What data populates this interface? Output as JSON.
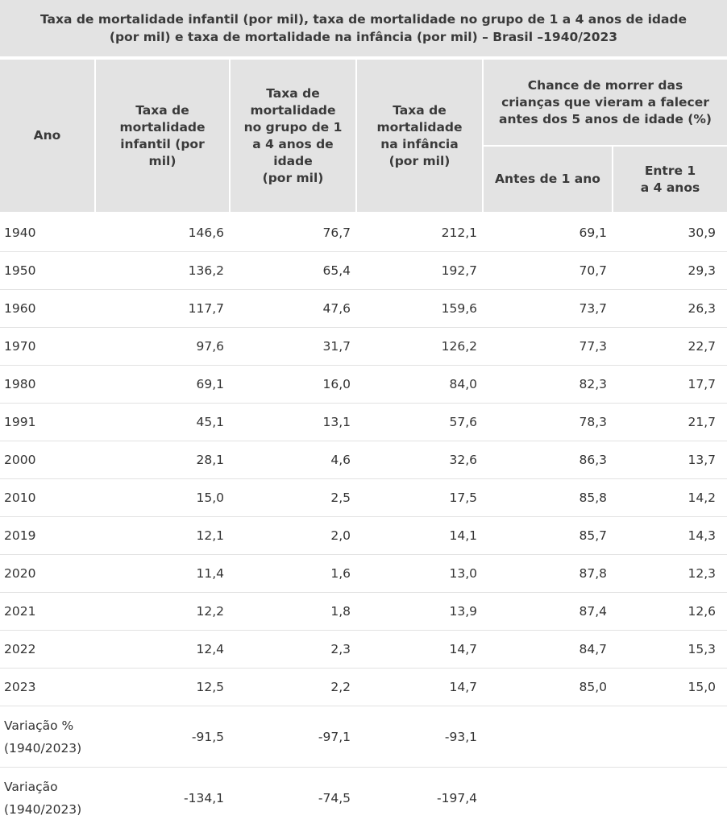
{
  "title": {
    "line1": "Taxa de mortalidade infantil (por mil), taxa de mortalidade no grupo de 1 a 4 anos de idade",
    "line2": "(por mil) e taxa de mortalidade na infância (por mil) – Brasil –1940/2023"
  },
  "header": {
    "ano": "Ano",
    "infantil": "Taxa de\nmortalidade\ninfantil (por\nmil)",
    "grupo": "Taxa de\nmortalidade\nno grupo de 1\na 4 anos de\nidade\n(por mil)",
    "infancia": "Taxa de\nmortalidade\nna infância\n(por mil)",
    "chance": "Chance de morrer das\ncrianças que vieram a falecer\nantes dos 5 anos de idade (%)",
    "antes": "Antes de 1 ano",
    "entre": "Entre 1\na 4 anos"
  },
  "rows": [
    {
      "ano": "1940",
      "infantil": "146,6",
      "grupo": "76,7",
      "infancia": "212,1",
      "antes": "69,1",
      "entre": "30,9"
    },
    {
      "ano": "1950",
      "infantil": "136,2",
      "grupo": "65,4",
      "infancia": "192,7",
      "antes": "70,7",
      "entre": "29,3"
    },
    {
      "ano": "1960",
      "infantil": "117,7",
      "grupo": "47,6",
      "infancia": "159,6",
      "antes": "73,7",
      "entre": "26,3"
    },
    {
      "ano": "1970",
      "infantil": "97,6",
      "grupo": "31,7",
      "infancia": "126,2",
      "antes": "77,3",
      "entre": "22,7"
    },
    {
      "ano": "1980",
      "infantil": "69,1",
      "grupo": "16,0",
      "infancia": "84,0",
      "antes": "82,3",
      "entre": "17,7"
    },
    {
      "ano": "1991",
      "infantil": "45,1",
      "grupo": "13,1",
      "infancia": "57,6",
      "antes": "78,3",
      "entre": "21,7"
    },
    {
      "ano": "2000",
      "infantil": "28,1",
      "grupo": "4,6",
      "infancia": "32,6",
      "antes": "86,3",
      "entre": "13,7"
    },
    {
      "ano": "2010",
      "infantil": "15,0",
      "grupo": "2,5",
      "infancia": "17,5",
      "antes": "85,8",
      "entre": "14,2"
    },
    {
      "ano": "2019",
      "infantil": "12,1",
      "grupo": "2,0",
      "infancia": "14,1",
      "antes": "85,7",
      "entre": "14,3"
    },
    {
      "ano": "2020",
      "infantil": "11,4",
      "grupo": "1,6",
      "infancia": "13,0",
      "antes": "87,8",
      "entre": "12,3"
    },
    {
      "ano": "2021",
      "infantil": "12,2",
      "grupo": "1,8",
      "infancia": "13,9",
      "antes": "87,4",
      "entre": "12,6"
    },
    {
      "ano": "2022",
      "infantil": "12,4",
      "grupo": "2,3",
      "infancia": "14,7",
      "antes": "84,7",
      "entre": "15,3"
    },
    {
      "ano": "2023",
      "infantil": "12,5",
      "grupo": "2,2",
      "infancia": "14,7",
      "antes": "85,0",
      "entre": "15,0"
    }
  ],
  "variations": [
    {
      "label": "Variação %\n(1940/2023)",
      "infantil": "-91,5",
      "grupo": "-97,1",
      "infancia": "-93,1"
    },
    {
      "label": "Variação\n(1940/2023)",
      "infantil": "-134,1",
      "grupo": "-74,5",
      "infancia": "-197,4"
    }
  ]
}
